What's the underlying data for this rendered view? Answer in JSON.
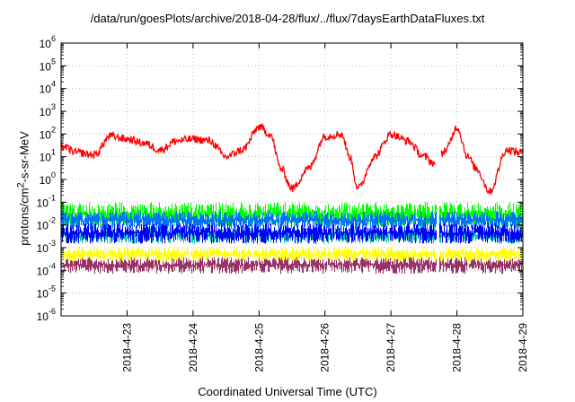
{
  "title": "/data/run/goesPlots/archive/2018-04-28/flux/../flux/7daysEarthDataFluxes.txt",
  "xlabel": "Coordinated Universal Time (UTC)",
  "ylabel_html": "protons/cm<sup>2</sup>-s-sr-MeV",
  "chart_data": {
    "type": "line",
    "title": "/data/run/goesPlots/archive/2018-04-28/flux/../flux/7daysEarthDataFluxes.txt",
    "xlabel": "Coordinated Universal Time (UTC)",
    "ylabel": "protons/cm2-s-sr-MeV",
    "yscale": "log",
    "ylim": [
      1e-06,
      1000000.0
    ],
    "y_ticks": [
      -6,
      -5,
      -4,
      -3,
      -2,
      -1,
      0,
      1,
      2,
      3,
      4,
      5,
      6
    ],
    "xlim": [
      "2018-04-22T00:00",
      "2018-04-29T00:00"
    ],
    "x_tick_labels": [
      "2018-4-23",
      "2018-4-24",
      "2018-4-25",
      "2018-4-26",
      "2018-4-27",
      "2018-4-28",
      "2018-4-29"
    ],
    "grid": true,
    "series": [
      {
        "color": "#ff0000",
        "x": [
          "2018-04-22T00:00",
          "2018-04-22T06:00",
          "2018-04-22T12:00",
          "2018-04-22T18:00",
          "2018-04-23T00:00",
          "2018-04-23T06:00",
          "2018-04-23T12:00",
          "2018-04-23T18:00",
          "2018-04-24T00:00",
          "2018-04-24T06:00",
          "2018-04-24T12:00",
          "2018-04-24T18:00",
          "2018-04-25T00:00",
          "2018-04-25T04:00",
          "2018-04-25T08:00",
          "2018-04-25T12:00",
          "2018-04-25T18:00",
          "2018-04-26T00:00",
          "2018-04-26T06:00",
          "2018-04-26T09:00",
          "2018-04-26T12:00",
          "2018-04-26T18:00",
          "2018-04-27T00:00",
          "2018-04-27T06:00",
          "2018-04-27T12:00",
          "2018-04-27T16:00",
          "2018-04-27T20:00",
          "2018-04-28T00:00",
          "2018-04-28T04:00",
          "2018-04-28T07:00",
          "2018-04-28T12:00",
          "2018-04-28T18:00",
          "2018-04-29T00:00"
        ],
        "y": [
          30,
          15,
          12,
          80,
          60,
          40,
          20,
          50,
          60,
          50,
          10,
          20,
          200,
          100,
          3,
          0.4,
          3,
          80,
          100,
          10,
          0.4,
          10,
          100,
          50,
          10,
          5,
          20,
          200,
          10,
          3,
          0.3,
          20,
          15
        ]
      },
      {
        "color": "#00ff00",
        "band": [
          0.008,
          0.1
        ],
        "x": [
          "2018-04-22T00:00",
          "2018-04-29T00:00"
        ],
        "y": [
          0.02,
          0.02
        ]
      },
      {
        "color": "#0070ff",
        "band": [
          0.006,
          0.04
        ],
        "x": [
          "2018-04-22T00:00",
          "2018-04-29T00:00"
        ],
        "y": [
          0.015,
          0.015
        ]
      },
      {
        "color": "#00c8a0",
        "band": [
          0.0015,
          0.008
        ],
        "x": [
          "2018-04-22T00:00",
          "2018-04-29T00:00"
        ],
        "y": [
          0.003,
          0.003
        ]
      },
      {
        "color": "#0000ff",
        "band": [
          0.0015,
          0.012
        ],
        "x": [
          "2018-04-22T00:00",
          "2018-04-29T00:00"
        ],
        "y": [
          0.005,
          0.005
        ]
      },
      {
        "color": "#ffff00",
        "band": [
          0.00025,
          0.001
        ],
        "x": [
          "2018-04-22T00:00",
          "2018-04-29T00:00"
        ],
        "y": [
          0.0005,
          0.0005
        ]
      },
      {
        "color": "#993366",
        "band": [
          7e-05,
          0.0004
        ],
        "x": [
          "2018-04-22T00:00",
          "2018-04-29T00:00"
        ],
        "y": [
          0.00015,
          0.00015
        ]
      }
    ],
    "data_gap": "2018-04-27T17:00"
  }
}
